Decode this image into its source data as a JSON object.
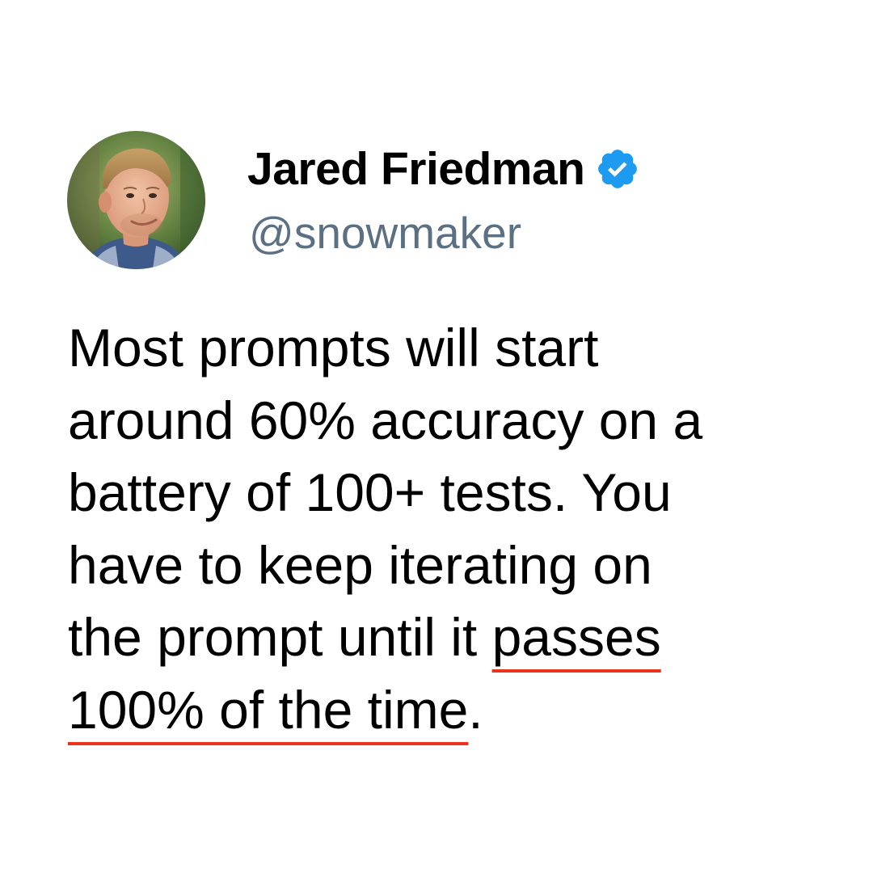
{
  "author": {
    "display_name": "Jared Friedman",
    "handle": "@snowmaker",
    "verified_icon": "verified-badge-icon",
    "avatar": "profile-photo"
  },
  "tweet": {
    "lines": [
      "Most prompts will start",
      "around 60% accuracy on a",
      "battery of 100+ tests.  You",
      "have to keep iterating on",
      "the prompt until it ",
      "100% of the time"
    ],
    "emphasis_part1": "passes",
    "emphasis_part2": "100% of the time",
    "trailing_period": "."
  },
  "colors": {
    "handle": "#5b7083",
    "verified_badge": "#1d9bf0",
    "underline": "#e8341c",
    "text": "#000000",
    "background": "#ffffff"
  }
}
